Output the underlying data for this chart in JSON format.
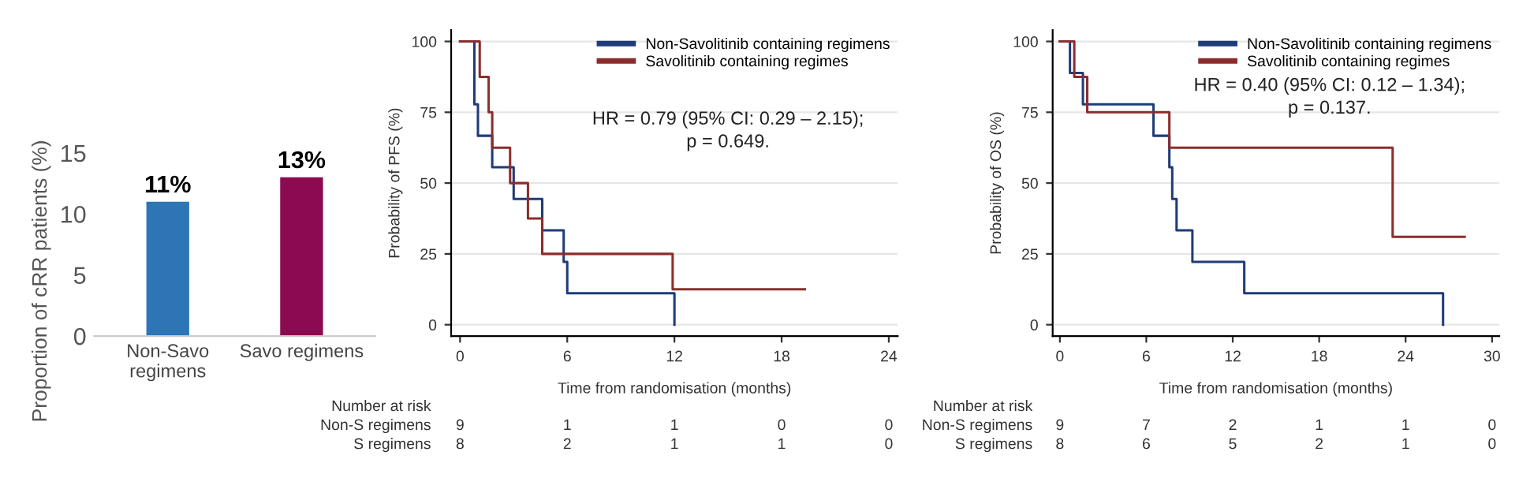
{
  "chart_data": [
    {
      "type": "bar",
      "ylabel": "Proportion of cRR patients (%)",
      "categories": [
        "Non-Savo\nregimens",
        "Savo regimens"
      ],
      "values": [
        11,
        13
      ],
      "colors": [
        "#2e75b6",
        "#8b0a50"
      ],
      "value_labels": [
        "11%",
        "13%"
      ],
      "ylim": [
        0,
        15
      ],
      "yticks": [
        0,
        5,
        10,
        15
      ],
      "grid": false
    },
    {
      "type": "step",
      "xlabel": "Time from randomisation (months)",
      "ylabel": "Probability of PFS (%)",
      "xlim": [
        -0.5,
        24.5
      ],
      "xticks": [
        0,
        6,
        12,
        18,
        24
      ],
      "ylim": [
        -4,
        104
      ],
      "yticks": [
        0,
        25,
        50,
        75,
        100
      ],
      "grid": "y",
      "legend": "top right",
      "series": [
        {
          "name": "Non-Savolitinib containing regimens",
          "color": "#1f3c78",
          "x": [
            0,
            0.8,
            1.0,
            1.8,
            3.0,
            4.6,
            5.8,
            6.0,
            12.0
          ],
          "values": [
            100,
            77.8,
            66.7,
            55.6,
            44.4,
            33.3,
            22.2,
            11.1,
            0
          ]
        },
        {
          "name": "Savolitinib containing regimes",
          "color": "#8c2d2d",
          "x": [
            0,
            1.1,
            1.6,
            1.8,
            2.8,
            3.8,
            4.6,
            11.9,
            19.3
          ],
          "values": [
            100,
            87.5,
            75,
            62.5,
            50,
            37.5,
            25,
            12.5,
            12.5
          ]
        }
      ],
      "annotations": [
        "HR = 0.79 (95% CI: 0.29 – 2.15);\np = 0.649.",
        "Number at risk",
        "Non-S regimens",
        "S regimens",
        "9",
        "1",
        "1",
        "0",
        "0",
        "8",
        "2",
        "1",
        "1",
        "0"
      ]
    },
    {
      "type": "step",
      "xlabel": "Time from randomisation (months)",
      "ylabel": "Probability of OS (%)",
      "xlim": [
        -0.5,
        30.5
      ],
      "xticks": [
        0,
        6,
        12,
        18,
        24,
        30
      ],
      "ylim": [
        -4,
        104
      ],
      "yticks": [
        0,
        25,
        50,
        75,
        100
      ],
      "grid": "y",
      "legend": "top right",
      "series": [
        {
          "name": "Non-Savolitinib containing regimens",
          "color": "#1f3c78",
          "x": [
            0,
            0.7,
            1.6,
            6.5,
            7.6,
            7.8,
            8.1,
            9.2,
            12.8,
            26.6
          ],
          "values": [
            100,
            88.9,
            77.8,
            66.7,
            55.6,
            44.4,
            33.3,
            22.2,
            11.1,
            0
          ]
        },
        {
          "name": "Savolitinib containing regimes",
          "color": "#8c2d2d",
          "x": [
            0,
            1.0,
            1.9,
            7.6,
            23.1,
            28.1
          ],
          "values": [
            100,
            87.5,
            75,
            62.5,
            31,
            31
          ]
        }
      ],
      "annotations": [
        "HR = 0.40 (95% CI: 0.12 – 1.34);\np = 0.137.",
        "Number at risk",
        "Non-S regimens",
        "S regimens",
        "9",
        "7",
        "2",
        "1",
        "1",
        "0",
        "8",
        "6",
        "5",
        "2",
        "1",
        "0"
      ]
    }
  ]
}
